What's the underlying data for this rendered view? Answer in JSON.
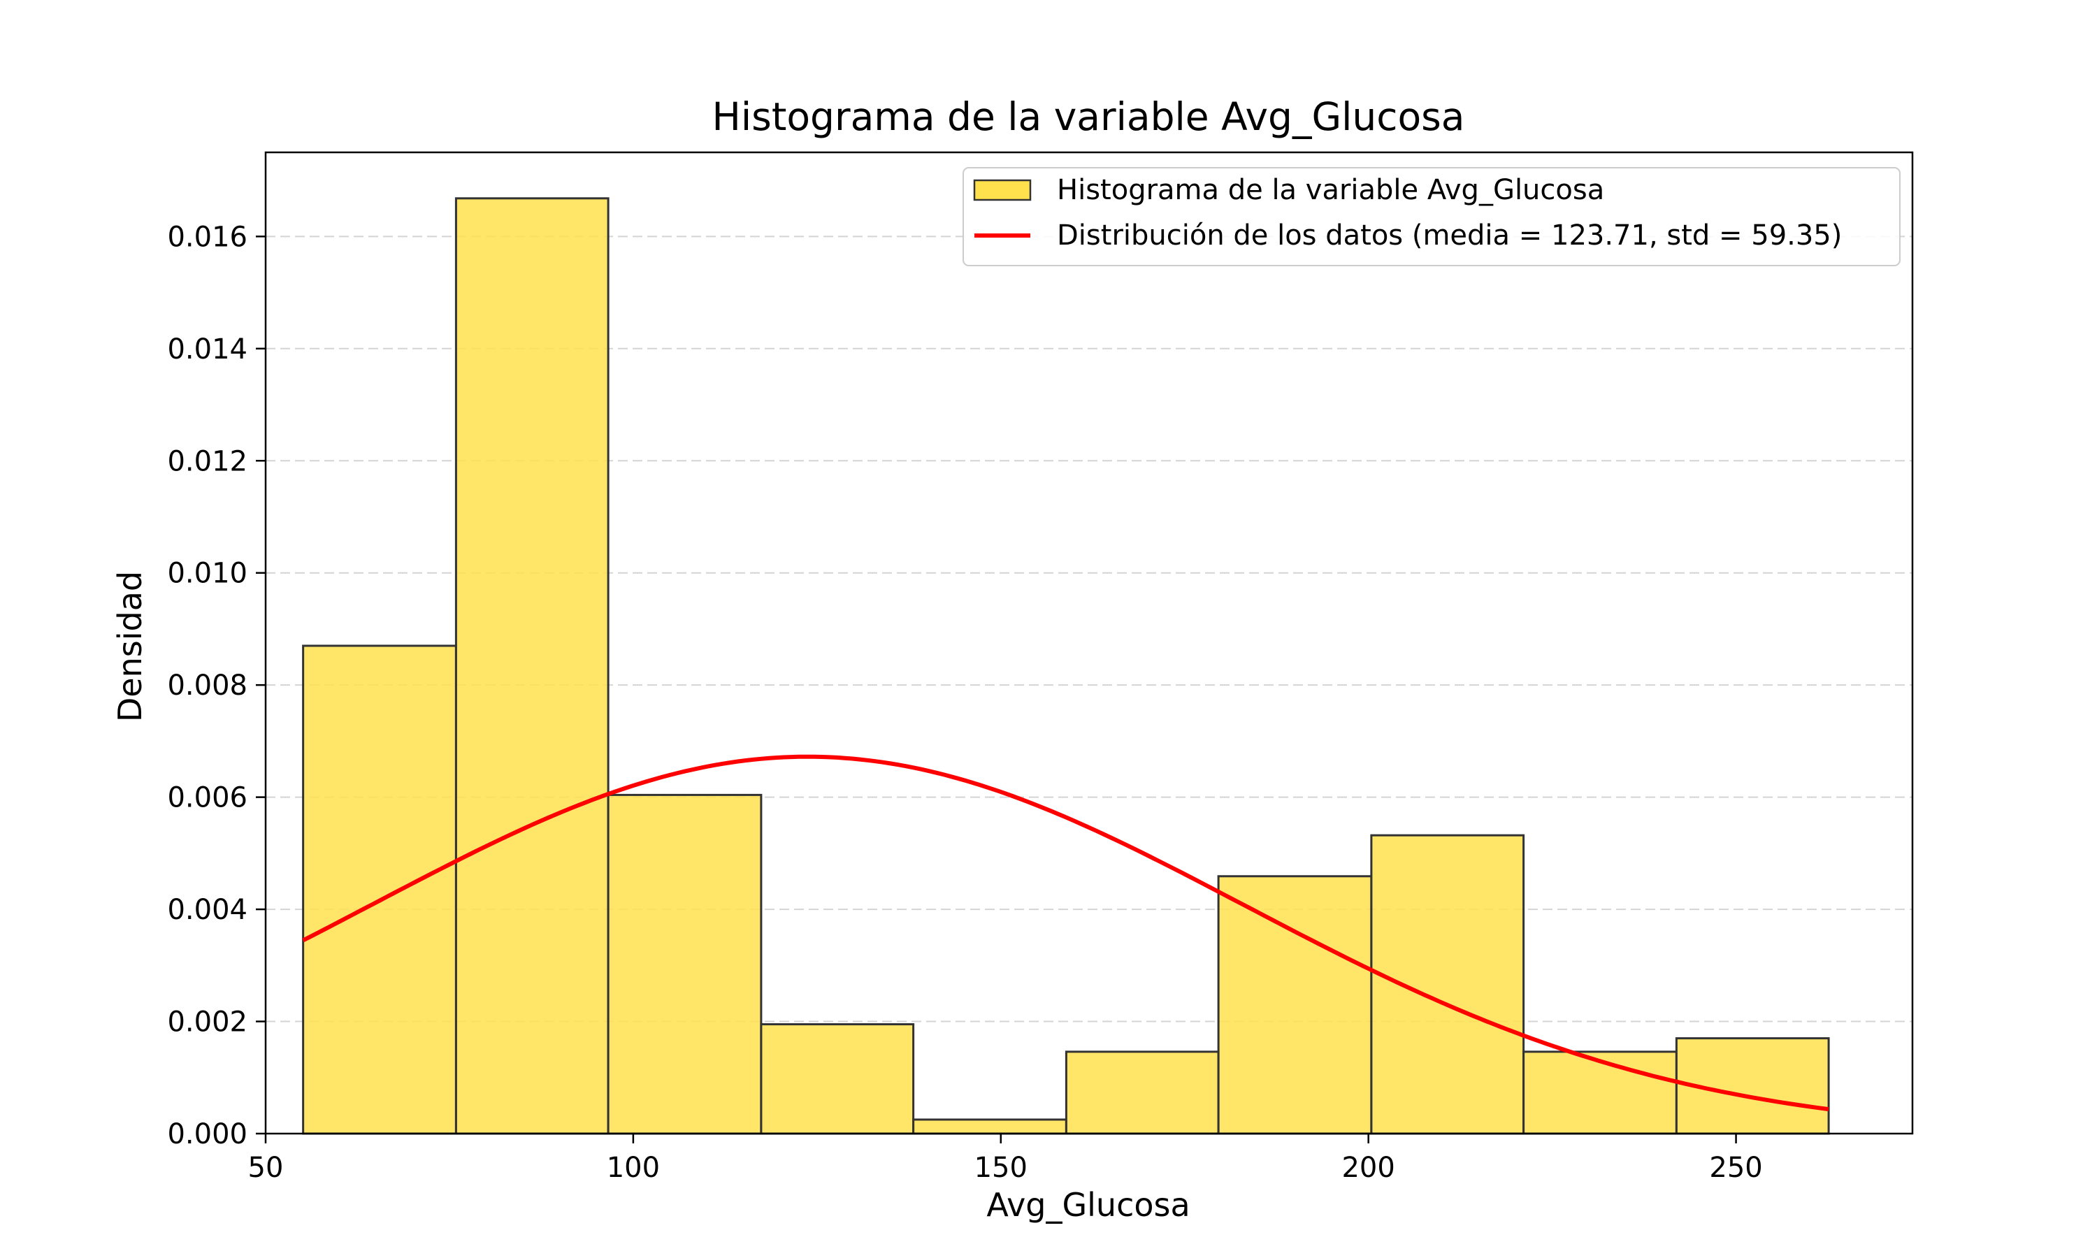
{
  "chart_data": {
    "type": "bar",
    "title": "Histograma de la variable Avg_Glucosa",
    "xlabel": "Avg_Glucosa",
    "ylabel": "Densidad",
    "xlim": [
      50,
      274
    ],
    "ylim": [
      0,
      0.0175
    ],
    "xticks": [
      50,
      100,
      150,
      200,
      250
    ],
    "xtick_labels": [
      "50",
      "100",
      "150",
      "200",
      "250"
    ],
    "yticks": [
      0,
      0.002,
      0.004,
      0.006,
      0.008,
      0.01,
      0.012,
      0.014,
      0.016
    ],
    "ytick_labels": [
      "0.000",
      "0.002",
      "0.004",
      "0.006",
      "0.008",
      "0.010",
      "0.012",
      "0.014",
      "0.016"
    ],
    "grid": "y-dashed",
    "legend": "top-right",
    "bins": {
      "edges": [
        55.1,
        75.9,
        96.6,
        117.4,
        138.1,
        158.9,
        179.6,
        200.4,
        221.1,
        241.9,
        262.6
      ],
      "densities": [
        0.0087,
        0.01668,
        0.00604,
        0.00195,
        0.00025,
        0.00146,
        0.00459,
        0.00532,
        0.00146,
        0.0017
      ],
      "name": "Histograma de la variable Avg_Glucosa",
      "color": "#FFE14D",
      "edgecolor": "#333333"
    },
    "curve": {
      "name": "Distribución de los datos (media = 123.71, std = 59.35)",
      "mean": 123.71,
      "std": 59.35,
      "x_range": [
        55.1,
        262.6
      ],
      "color": "#FF0000"
    }
  }
}
